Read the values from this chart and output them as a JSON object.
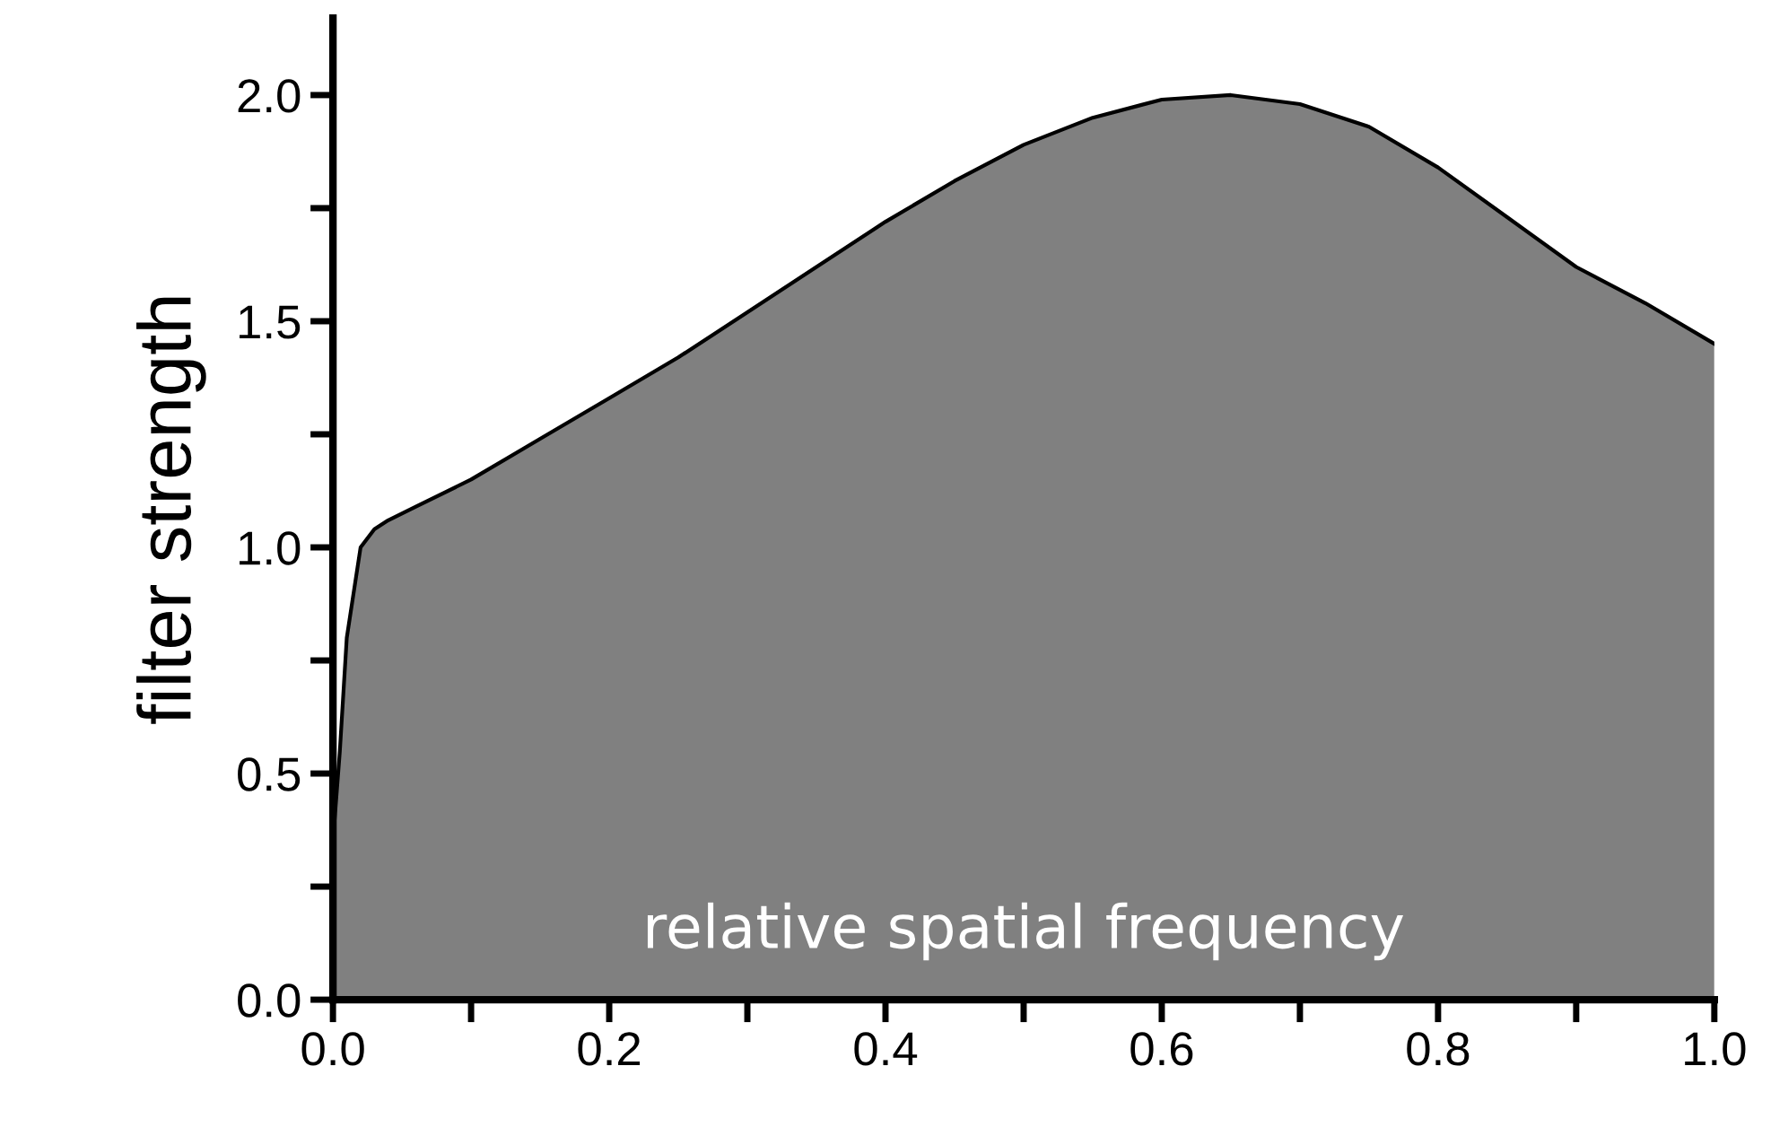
{
  "chart_data": {
    "type": "area",
    "xlabel": "relative spatial frequency",
    "ylabel": "filter strength",
    "x": [
      0,
      0.005,
      0.01,
      0.02,
      0.03,
      0.04,
      0.06,
      0.1,
      0.15,
      0.2,
      0.25,
      0.3,
      0.35,
      0.4,
      0.45,
      0.5,
      0.55,
      0.6,
      0.65,
      0.7,
      0.75,
      0.8,
      0.85,
      0.9,
      0.95,
      1.0
    ],
    "series": [
      {
        "color": "#808080",
        "values": [
          0.35,
          0.55,
          0.8,
          1.0,
          1.04,
          1.06,
          1.09,
          1.15,
          1.24,
          1.33,
          1.42,
          1.52,
          1.62,
          1.72,
          1.81,
          1.89,
          1.95,
          1.99,
          2.0,
          1.98,
          1.93,
          1.84,
          1.73,
          1.62,
          1.54,
          1.45
        ]
      }
    ],
    "xlim": [
      0,
      1.0
    ],
    "ylim": [
      0,
      2.17
    ],
    "xticks": [
      {
        "value": 0,
        "label": "0.0"
      },
      {
        "value": 0.1,
        "label": null
      },
      0.2,
      {
        "value": 0.3,
        "label": null
      },
      0.4,
      {
        "value": 0.5,
        "label": null
      },
      0.6,
      {
        "value": 0.7,
        "label": null
      },
      0.8,
      {
        "value": 0.9,
        "label": null
      },
      {
        "value": 1,
        "label": "1.0"
      }
    ],
    "yticks": [
      {
        "value": 0,
        "label": "0.0"
      },
      {
        "value": 0.25,
        "label": null
      },
      0.5,
      {
        "value": 0.75,
        "label": null
      },
      {
        "value": 1,
        "label": "1.0"
      },
      {
        "value": 1.25,
        "label": null
      },
      1.5,
      {
        "value": 1.75,
        "label": null
      },
      {
        "value": 2,
        "label": "2.0"
      }
    ],
    "grid": false,
    "legend": false
  }
}
